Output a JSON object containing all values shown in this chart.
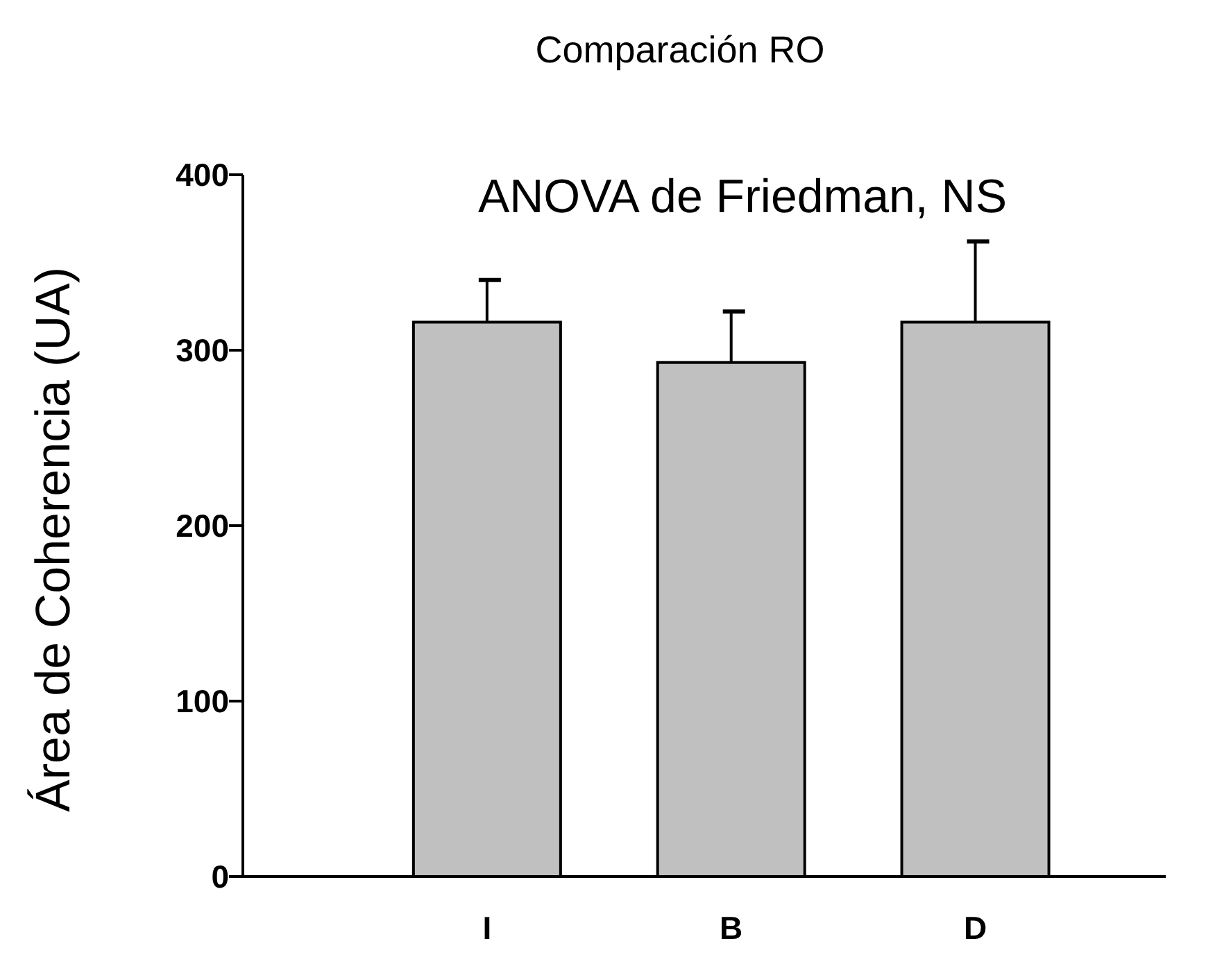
{
  "chart_data": {
    "type": "bar",
    "title": "Comparación RO",
    "ylabel": "Área de Coherencia (UA)",
    "categories": [
      "I",
      "B",
      "D"
    ],
    "values": [
      316,
      293,
      316
    ],
    "errors": [
      [
        316,
        340
      ],
      [
        293,
        322
      ],
      [
        316,
        362
      ]
    ],
    "color": "#c0c0c0",
    "ylim": [
      0,
      400
    ],
    "yticks": [
      0,
      100,
      200,
      300,
      400
    ],
    "annotations": [
      "ANOVA de Friedman, NS"
    ],
    "grid": false
  }
}
